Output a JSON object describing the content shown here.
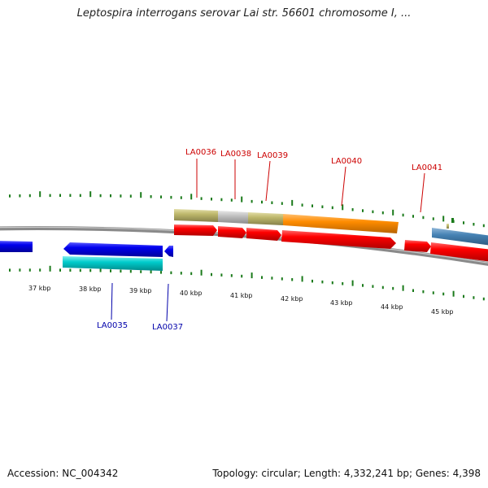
{
  "title": "Leptospira interrogans serovar Lai str. 56601 chromosome I, ...",
  "footer": {
    "accession": "Accession: NC_004342",
    "topology": "Topology: circular; Length: 4,332,241 bp; Genes: 4,398"
  },
  "colors": {
    "tick": "#1a7a1a",
    "forward_label": "#cc0000",
    "reverse_label": "#0000aa",
    "red_gene": "#ff0000",
    "blue_gene": "#0000ee",
    "cyan_gene": "#00cccc",
    "steel_gene": "#4682b4",
    "orange_feature": "#ff8c00",
    "olive_feature": "#bdb76b",
    "gray_feature": "#c0c0c0",
    "backbone": "#8a8a8a"
  },
  "scale_labels": [
    "37 kbp",
    "38 kbp",
    "39 kbp",
    "40 kbp",
    "41 kbp",
    "42 kbp",
    "43 kbp",
    "44 kbp",
    "45 kbp"
  ],
  "forward_gene_labels": [
    "LA0036",
    "LA0038",
    "LA0039",
    "LA0040",
    "LA0041"
  ],
  "reverse_gene_labels": [
    "LA0035",
    "LA0037"
  ]
}
